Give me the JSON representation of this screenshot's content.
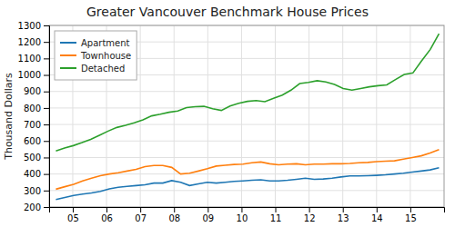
{
  "chart_data": {
    "type": "line",
    "title": "Greater Vancouver Benchmark House Prices",
    "y_label": "Thousand Dollars",
    "xlim": [
      2004.3,
      2016.0
    ],
    "xticks": [
      {
        "value": 2005,
        "label": "05"
      },
      {
        "value": 2006,
        "label": "06"
      },
      {
        "value": 2007,
        "label": "07"
      },
      {
        "value": 2008,
        "label": "08"
      },
      {
        "value": 2009,
        "label": "09"
      },
      {
        "value": 2010,
        "label": "10"
      },
      {
        "value": 2011,
        "label": "11"
      },
      {
        "value": 2012,
        "label": "12"
      },
      {
        "value": 2013,
        "label": "13"
      },
      {
        "value": 2014,
        "label": "14"
      },
      {
        "value": 2015,
        "label": "15"
      }
    ],
    "ylim": [
      200,
      1300
    ],
    "yticks": [
      200,
      300,
      400,
      500,
      600,
      700,
      800,
      900,
      1000,
      1100,
      1200,
      1300
    ],
    "grid": true,
    "legend": "upper left",
    "series": [
      {
        "name": "Apartment",
        "x": [
          2004.5,
          2004.763953,
          2005.027907,
          2005.29186,
          2005.555814,
          2005.819767,
          2006.083721,
          2006.347674,
          2006.611628,
          2006.875581,
          2007.139535,
          2007.403488,
          2007.667442,
          2007.931395,
          2008.195349,
          2008.459302,
          2008.723256,
          2008.987209,
          2009.251163,
          2009.515116,
          2009.77907,
          2010.043023,
          2010.306977,
          2010.57093,
          2010.834884,
          2011.098837,
          2011.362791,
          2011.626744,
          2011.890698,
          2012.154651,
          2012.418605,
          2012.682558,
          2012.946512,
          2013.210465,
          2013.474419,
          2013.738372,
          2014.002326,
          2014.266279,
          2014.530233,
          2014.794186,
          2015.05814,
          2015.322093,
          2015.586047,
          2015.85
        ],
        "values": [
          245,
          258,
          270,
          278,
          285,
          295,
          310,
          320,
          325,
          330,
          335,
          345,
          345,
          360,
          350,
          330,
          340,
          350,
          345,
          350,
          355,
          358,
          362,
          365,
          358,
          358,
          362,
          368,
          375,
          368,
          370,
          375,
          382,
          388,
          388,
          390,
          392,
          395,
          400,
          405,
          412,
          418,
          425,
          438
        ]
      },
      {
        "name": "Townhouse",
        "x": [
          2004.5,
          2004.763953,
          2005.027907,
          2005.29186,
          2005.555814,
          2005.819767,
          2006.083721,
          2006.347674,
          2006.611628,
          2006.875581,
          2007.139535,
          2007.403488,
          2007.667442,
          2007.931395,
          2008.195349,
          2008.459302,
          2008.723256,
          2008.987209,
          2009.251163,
          2009.515116,
          2009.77907,
          2010.043023,
          2010.306977,
          2010.57093,
          2010.834884,
          2011.098837,
          2011.362791,
          2011.626744,
          2011.890698,
          2012.154651,
          2012.418605,
          2012.682558,
          2012.946512,
          2013.210465,
          2013.474419,
          2013.738372,
          2014.002326,
          2014.266279,
          2014.530233,
          2014.794186,
          2015.05814,
          2015.322093,
          2015.586047,
          2015.85
        ],
        "values": [
          308,
          323,
          338,
          358,
          375,
          390,
          400,
          408,
          418,
          428,
          445,
          452,
          452,
          440,
          400,
          405,
          418,
          432,
          448,
          453,
          458,
          460,
          468,
          473,
          462,
          456,
          460,
          462,
          456,
          460,
          460,
          462,
          462,
          464,
          468,
          470,
          475,
          478,
          480,
          490,
          500,
          510,
          527,
          548
        ]
      },
      {
        "name": "Detached",
        "x": [
          2004.5,
          2004.757955,
          2005.015909,
          2005.273864,
          2005.531818,
          2005.789773,
          2006.047727,
          2006.305682,
          2006.563636,
          2006.821591,
          2007.079545,
          2007.3375,
          2007.595455,
          2007.853409,
          2008.111364,
          2008.369318,
          2008.627273,
          2008.885227,
          2009.143182,
          2009.401136,
          2009.659091,
          2009.917045,
          2010.175,
          2010.432955,
          2010.690909,
          2010.948864,
          2011.206818,
          2011.464773,
          2011.722727,
          2011.980682,
          2012.238636,
          2012.496591,
          2012.754545,
          2013.0125,
          2013.270455,
          2013.528409,
          2013.786364,
          2014.044318,
          2014.302273,
          2014.560227,
          2014.818182,
          2015.076136,
          2015.334091,
          2015.592045,
          2015.85
        ],
        "values": [
          540,
          558,
          572,
          590,
          610,
          635,
          660,
          682,
          695,
          710,
          728,
          752,
          762,
          774,
          782,
          802,
          808,
          810,
          795,
          785,
          812,
          828,
          840,
          845,
          838,
          858,
          878,
          908,
          948,
          955,
          965,
          958,
          942,
          918,
          908,
          918,
          928,
          935,
          940,
          972,
          1003,
          1012,
          1085,
          1155,
          1250
        ]
      }
    ]
  }
}
